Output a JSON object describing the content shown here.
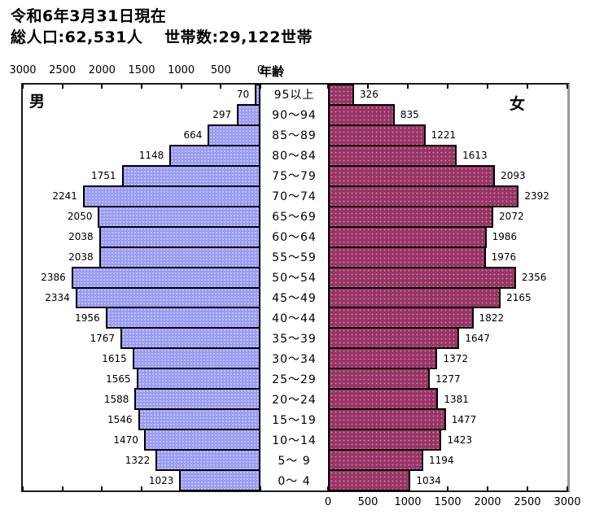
{
  "header": {
    "date_line": "令和6年3月31日現在",
    "population_line": "総人口:62,531人　 世帯数:29,122世帯"
  },
  "chart_data": {
    "type": "bar",
    "subtype": "population-pyramid",
    "axis_title": "年齢",
    "xlim": [
      0,
      3000
    ],
    "tick_step": 500,
    "tick_labels": [
      "0",
      "500",
      "1000",
      "1500",
      "2000",
      "2500",
      "3000"
    ],
    "legend_position": "inside-top",
    "grid": false,
    "categories": [
      "95以上",
      "90～94",
      "85～89",
      "80～84",
      "75～79",
      "70～74",
      "65～69",
      "60～64",
      "55～59",
      "50～54",
      "45～49",
      "40～44",
      "35～39",
      "30～34",
      "25～29",
      "20～24",
      "15～19",
      "10～14",
      "5～ 9",
      "0～ 4"
    ],
    "series": [
      {
        "name": "男",
        "side": "left",
        "color": "#9b9bf2",
        "values": [
          70,
          297,
          664,
          1148,
          1751,
          2241,
          2050,
          2038,
          2038,
          2386,
          2334,
          1956,
          1767,
          1615,
          1565,
          1588,
          1546,
          1470,
          1322,
          1023
        ]
      },
      {
        "name": "女",
        "side": "right",
        "color": "#993366",
        "values": [
          326,
          835,
          1221,
          1613,
          2093,
          2392,
          2072,
          1986,
          1976,
          2356,
          2165,
          1822,
          1647,
          1372,
          1277,
          1381,
          1477,
          1423,
          1194,
          1034
        ]
      }
    ]
  }
}
